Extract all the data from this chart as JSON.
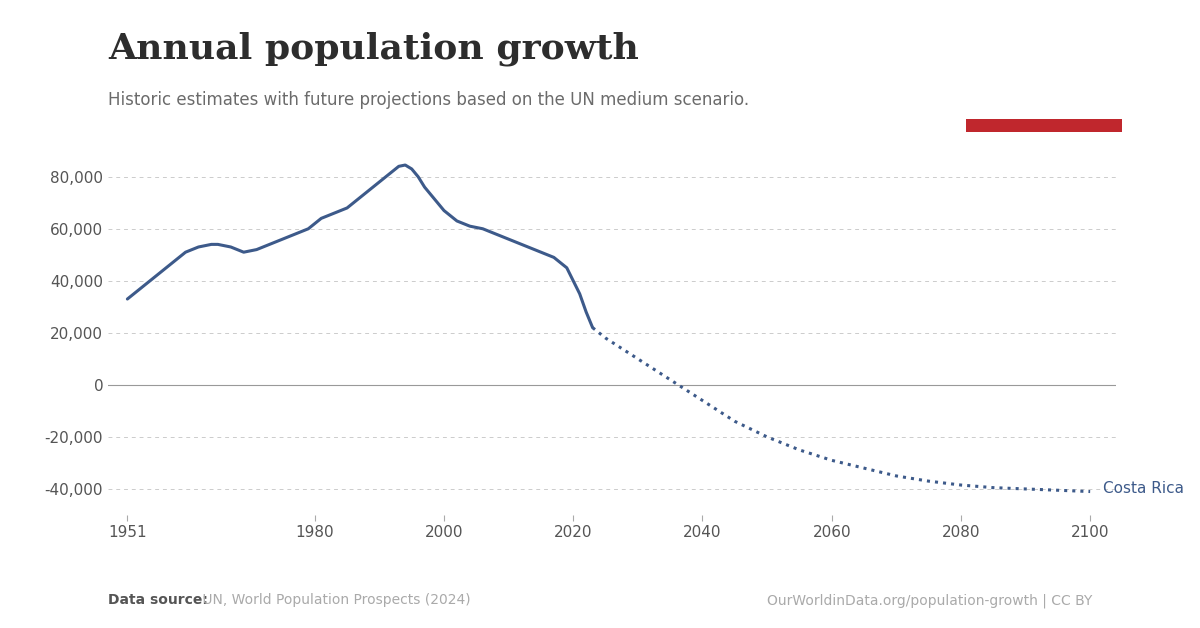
{
  "title": "Annual population growth",
  "subtitle": "Historic estimates with future projections based on the UN medium scenario.",
  "datasource_bold": "Data source:",
  "datasource_text": " UN, World Population Prospects (2024)",
  "url_text": "OurWorldinData.org/population-growth | CC BY",
  "country_label": "Costa Rica",
  "line_color": "#3d5a8a",
  "background_color": "#ffffff",
  "title_color": "#2d2d2d",
  "subtitle_color": "#6b6b6b",
  "owid_box_color": "#1a2e4a",
  "owid_box_red": "#c0272d",
  "ylim": [
    -50000,
    90000
  ],
  "yticks": [
    -40000,
    -20000,
    0,
    20000,
    40000,
    60000,
    80000
  ],
  "xticks": [
    1951,
    1980,
    2000,
    2020,
    2040,
    2060,
    2080,
    2100
  ],
  "solid_years": [
    1951,
    1952,
    1953,
    1954,
    1955,
    1956,
    1957,
    1958,
    1959,
    1960,
    1961,
    1962,
    1963,
    1964,
    1965,
    1966,
    1967,
    1968,
    1969,
    1970,
    1971,
    1972,
    1973,
    1974,
    1975,
    1976,
    1977,
    1978,
    1979,
    1980,
    1981,
    1982,
    1983,
    1984,
    1985,
    1986,
    1987,
    1988,
    1989,
    1990,
    1991,
    1992,
    1993,
    1994,
    1995,
    1996,
    1997,
    1998,
    1999,
    2000,
    2001,
    2002,
    2003,
    2004,
    2005,
    2006,
    2007,
    2008,
    2009,
    2010,
    2011,
    2012,
    2013,
    2014,
    2015,
    2016,
    2017,
    2018,
    2019,
    2020,
    2021,
    2022,
    2023
  ],
  "solid_values": [
    33000,
    35000,
    37000,
    39000,
    41000,
    43000,
    45000,
    47000,
    49000,
    51000,
    52000,
    53000,
    53500,
    54000,
    54000,
    53500,
    53000,
    52000,
    51000,
    51500,
    52000,
    53000,
    54000,
    55000,
    56000,
    57000,
    58000,
    59000,
    60000,
    62000,
    64000,
    65000,
    66000,
    67000,
    68000,
    70000,
    72000,
    74000,
    76000,
    78000,
    80000,
    82000,
    84000,
    84500,
    83000,
    80000,
    76000,
    73000,
    70000,
    67000,
    65000,
    63000,
    62000,
    61000,
    60500,
    60000,
    59000,
    58000,
    57000,
    56000,
    55000,
    54000,
    53000,
    52000,
    51000,
    50000,
    49000,
    47000,
    45000,
    40000,
    35000,
    28000,
    22000
  ],
  "dotted_years": [
    2023,
    2025,
    2030,
    2035,
    2040,
    2045,
    2050,
    2055,
    2060,
    2065,
    2070,
    2075,
    2080,
    2085,
    2090,
    2095,
    2100
  ],
  "dotted_values": [
    22000,
    18000,
    10000,
    2000,
    -6000,
    -14000,
    -20000,
    -25000,
    -29000,
    -32000,
    -35000,
    -37000,
    -38500,
    -39500,
    -40000,
    -40500,
    -41000
  ]
}
